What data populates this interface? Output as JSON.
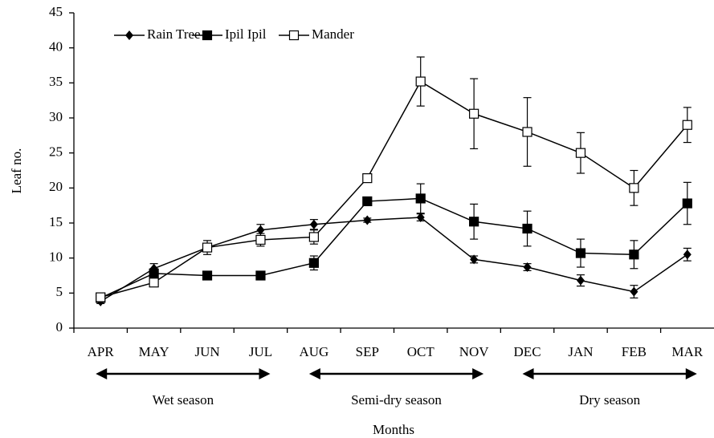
{
  "chart_data": {
    "type": "line",
    "y_label": "Leaf no.",
    "x_label": "Months",
    "categories": [
      "APR",
      "MAY",
      "JUN",
      "JUL",
      "AUG",
      "SEP",
      "OCT",
      "NOV",
      "DEC",
      "JAN",
      "FEB",
      "MAR"
    ],
    "ylim": [
      0,
      45
    ],
    "yticks": [
      0,
      5,
      10,
      15,
      20,
      25,
      30,
      35,
      40,
      45
    ],
    "legend": "top-left",
    "annotations": [
      "Wet season",
      "Semi-dry season",
      "Dry season"
    ],
    "series": [
      {
        "name": "Rain Tree",
        "color": "#000000",
        "marker": "diamond",
        "values": [
          3.8,
          8.5,
          11.5,
          14.0,
          14.8,
          15.4,
          15.8,
          9.8,
          8.7,
          6.8,
          5.2,
          10.5
        ],
        "errors": [
          0.3,
          0.7,
          0.5,
          0.8,
          0.7,
          0.3,
          0.5,
          0.5,
          0.5,
          0.8,
          0.9,
          0.9
        ]
      },
      {
        "name": "Ipil Ipil",
        "color": "#000000",
        "marker": "square",
        "values": [
          4.3,
          7.8,
          7.5,
          7.5,
          9.3,
          18.1,
          18.5,
          15.2,
          14.2,
          10.7,
          10.5,
          17.8
        ],
        "errors": [
          0.3,
          0.7,
          0.5,
          0.4,
          1.0,
          0.5,
          2.1,
          2.5,
          2.5,
          2.0,
          2.0,
          3.0
        ]
      },
      {
        "name": "Mander",
        "color": "#000000",
        "marker": "square-open",
        "values": [
          4.4,
          6.5,
          11.5,
          12.6,
          13.0,
          21.4,
          35.2,
          30.6,
          28.0,
          25.0,
          20.0,
          29.0
        ],
        "errors": [
          0.3,
          0.5,
          1.0,
          0.9,
          1.0,
          0.3,
          3.5,
          5.0,
          4.9,
          2.9,
          2.5,
          2.5
        ]
      }
    ]
  }
}
